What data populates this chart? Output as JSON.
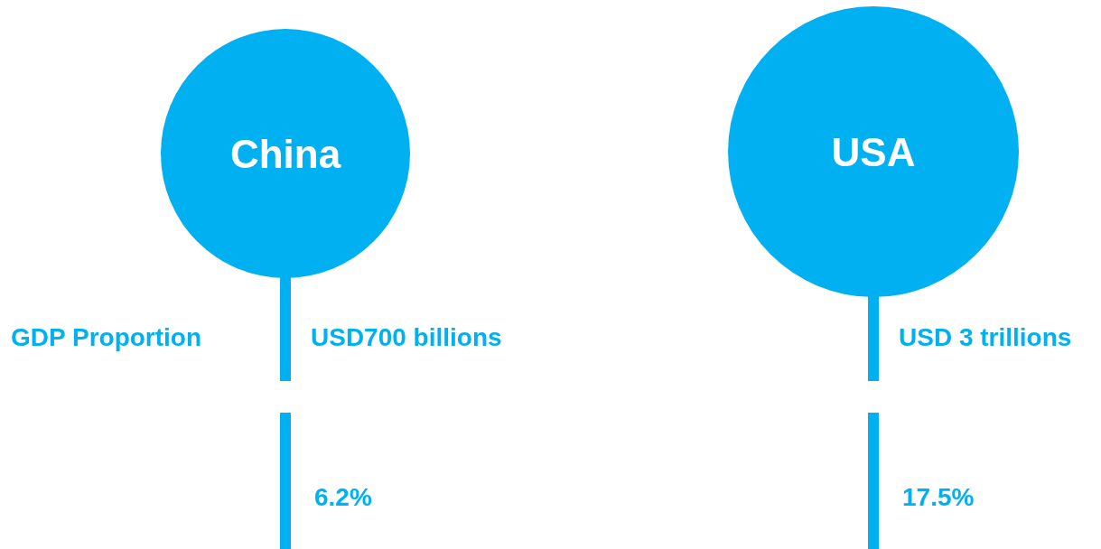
{
  "chart_data": {
    "type": "other",
    "categories": [
      "China",
      "USA"
    ],
    "color": "#00b0f0",
    "series": [
      {
        "color": "#00b0f0",
        "values": [
          6.2,
          17.5
        ],
        "value_labels": [
          "6.2%",
          "17.5%"
        ]
      }
    ],
    "annotations": [
      "GDP Proportion",
      {
        "text": "USD700 billions",
        "x": "China"
      },
      {
        "text": "USD 3 trillions",
        "x": "USA"
      }
    ]
  }
}
